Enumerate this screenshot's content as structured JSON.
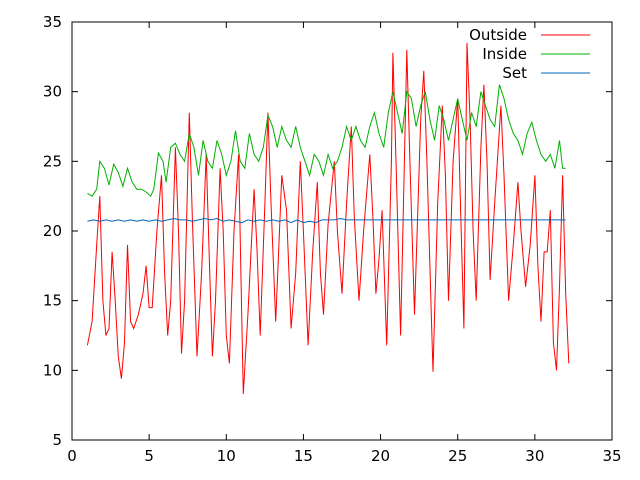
{
  "chart_data": {
    "type": "line",
    "title": "",
    "xlabel": "",
    "ylabel": "",
    "xlim": [
      0,
      35
    ],
    "ylim": [
      5,
      35
    ],
    "x_ticks": [
      0,
      5,
      10,
      15,
      20,
      25,
      30,
      35
    ],
    "y_ticks": [
      5,
      10,
      15,
      20,
      25,
      30,
      35
    ],
    "grid": false,
    "legend_position": "top-right",
    "series": [
      {
        "name": "Outside",
        "color": "#ff0000",
        "points": [
          [
            1.0,
            11.8
          ],
          [
            1.3,
            13.5
          ],
          [
            1.6,
            19.0
          ],
          [
            1.8,
            22.5
          ],
          [
            2.0,
            15.0
          ],
          [
            2.2,
            12.5
          ],
          [
            2.4,
            13.0
          ],
          [
            2.6,
            18.5
          ],
          [
            2.8,
            15.0
          ],
          [
            3.0,
            11.0
          ],
          [
            3.2,
            9.4
          ],
          [
            3.4,
            12.0
          ],
          [
            3.6,
            19.0
          ],
          [
            3.8,
            13.5
          ],
          [
            4.0,
            13.0
          ],
          [
            4.3,
            14.0
          ],
          [
            4.6,
            15.5
          ],
          [
            4.8,
            17.5
          ],
          [
            5.0,
            14.5
          ],
          [
            5.2,
            14.5
          ],
          [
            5.5,
            20.0
          ],
          [
            5.8,
            24.0
          ],
          [
            6.0,
            17.0
          ],
          [
            6.2,
            12.5
          ],
          [
            6.4,
            15.0
          ],
          [
            6.7,
            26.0
          ],
          [
            6.9,
            20.0
          ],
          [
            7.1,
            11.2
          ],
          [
            7.3,
            15.0
          ],
          [
            7.6,
            28.5
          ],
          [
            7.8,
            21.0
          ],
          [
            8.1,
            11.0
          ],
          [
            8.4,
            17.0
          ],
          [
            8.7,
            25.5
          ],
          [
            8.9,
            18.0
          ],
          [
            9.1,
            11.0
          ],
          [
            9.3,
            15.0
          ],
          [
            9.6,
            24.5
          ],
          [
            9.8,
            20.0
          ],
          [
            10.0,
            12.5
          ],
          [
            10.2,
            10.5
          ],
          [
            10.5,
            20.0
          ],
          [
            10.8,
            25.5
          ],
          [
            11.0,
            14.0
          ],
          [
            11.1,
            8.3
          ],
          [
            11.4,
            14.0
          ],
          [
            11.8,
            23.0
          ],
          [
            12.0,
            18.5
          ],
          [
            12.2,
            12.5
          ],
          [
            12.5,
            22.0
          ],
          [
            12.7,
            28.5
          ],
          [
            12.9,
            22.0
          ],
          [
            13.2,
            13.5
          ],
          [
            13.6,
            24.0
          ],
          [
            13.9,
            21.5
          ],
          [
            14.2,
            13.0
          ],
          [
            14.5,
            17.0
          ],
          [
            14.8,
            25.0
          ],
          [
            15.0,
            20.0
          ],
          [
            15.3,
            11.8
          ],
          [
            15.6,
            18.5
          ],
          [
            15.9,
            23.5
          ],
          [
            16.1,
            17.0
          ],
          [
            16.3,
            14.0
          ],
          [
            16.6,
            20.5
          ],
          [
            17.0,
            25.0
          ],
          [
            17.2,
            20.0
          ],
          [
            17.5,
            15.5
          ],
          [
            17.8,
            22.0
          ],
          [
            18.1,
            27.5
          ],
          [
            18.3,
            21.0
          ],
          [
            18.6,
            15.0
          ],
          [
            18.9,
            20.0
          ],
          [
            19.3,
            25.5
          ],
          [
            19.5,
            21.0
          ],
          [
            19.7,
            15.5
          ],
          [
            19.9,
            18.0
          ],
          [
            20.1,
            21.5
          ],
          [
            20.4,
            11.8
          ],
          [
            20.7,
            25.0
          ],
          [
            20.8,
            32.8
          ],
          [
            21.0,
            25.0
          ],
          [
            21.3,
            12.5
          ],
          [
            21.6,
            28.0
          ],
          [
            21.7,
            33.0
          ],
          [
            21.9,
            25.0
          ],
          [
            22.2,
            14.0
          ],
          [
            22.6,
            28.0
          ],
          [
            22.8,
            31.5
          ],
          [
            23.0,
            25.0
          ],
          [
            23.3,
            13.5
          ],
          [
            23.4,
            9.9
          ],
          [
            23.7,
            22.0
          ],
          [
            24.0,
            29.0
          ],
          [
            24.2,
            24.0
          ],
          [
            24.4,
            15.0
          ],
          [
            24.7,
            25.0
          ],
          [
            25.0,
            29.5
          ],
          [
            25.2,
            21.0
          ],
          [
            25.4,
            13.0
          ],
          [
            25.6,
            33.5
          ],
          [
            25.8,
            28.0
          ],
          [
            26.0,
            20.0
          ],
          [
            26.2,
            15.0
          ],
          [
            26.5,
            26.0
          ],
          [
            26.7,
            30.5
          ],
          [
            26.9,
            25.0
          ],
          [
            27.1,
            16.5
          ],
          [
            27.4,
            22.0
          ],
          [
            27.8,
            29.0
          ],
          [
            28.0,
            24.0
          ],
          [
            28.3,
            15.0
          ],
          [
            28.6,
            19.0
          ],
          [
            28.9,
            23.5
          ],
          [
            29.1,
            20.0
          ],
          [
            29.4,
            16.0
          ],
          [
            29.7,
            19.0
          ],
          [
            30.0,
            24.0
          ],
          [
            30.2,
            17.5
          ],
          [
            30.4,
            13.5
          ],
          [
            30.6,
            18.5
          ],
          [
            30.8,
            18.5
          ],
          [
            31.0,
            21.5
          ],
          [
            31.2,
            12.0
          ],
          [
            31.4,
            10.0
          ],
          [
            31.6,
            16.0
          ],
          [
            31.8,
            24.0
          ],
          [
            32.0,
            15.5
          ],
          [
            32.2,
            10.5
          ]
        ]
      },
      {
        "name": "Inside",
        "color": "#00b000",
        "points": [
          [
            1.0,
            22.7
          ],
          [
            1.3,
            22.5
          ],
          [
            1.6,
            23.0
          ],
          [
            1.8,
            25.0
          ],
          [
            2.1,
            24.5
          ],
          [
            2.4,
            23.3
          ],
          [
            2.7,
            24.8
          ],
          [
            3.0,
            24.2
          ],
          [
            3.3,
            23.2
          ],
          [
            3.6,
            24.5
          ],
          [
            3.9,
            23.5
          ],
          [
            4.2,
            23.0
          ],
          [
            4.5,
            23.0
          ],
          [
            4.8,
            22.8
          ],
          [
            5.1,
            22.5
          ],
          [
            5.3,
            23.0
          ],
          [
            5.6,
            25.6
          ],
          [
            5.9,
            25.0
          ],
          [
            6.1,
            23.5
          ],
          [
            6.4,
            26.0
          ],
          [
            6.7,
            26.3
          ],
          [
            7.0,
            25.5
          ],
          [
            7.3,
            25.0
          ],
          [
            7.6,
            27.0
          ],
          [
            7.9,
            26.0
          ],
          [
            8.2,
            24.0
          ],
          [
            8.5,
            26.5
          ],
          [
            8.8,
            25.0
          ],
          [
            9.1,
            24.5
          ],
          [
            9.4,
            26.5
          ],
          [
            9.7,
            25.5
          ],
          [
            10.0,
            24.0
          ],
          [
            10.3,
            25.0
          ],
          [
            10.6,
            27.2
          ],
          [
            10.9,
            25.0
          ],
          [
            11.2,
            24.5
          ],
          [
            11.5,
            27.0
          ],
          [
            11.8,
            25.5
          ],
          [
            12.1,
            25.0
          ],
          [
            12.4,
            26.0
          ],
          [
            12.7,
            28.3
          ],
          [
            13.0,
            27.5
          ],
          [
            13.3,
            26.0
          ],
          [
            13.6,
            27.5
          ],
          [
            13.9,
            26.5
          ],
          [
            14.2,
            26.0
          ],
          [
            14.5,
            27.5
          ],
          [
            14.8,
            26.0
          ],
          [
            15.1,
            25.0
          ],
          [
            15.4,
            24.0
          ],
          [
            15.7,
            25.5
          ],
          [
            16.0,
            25.0
          ],
          [
            16.3,
            24.0
          ],
          [
            16.6,
            25.5
          ],
          [
            16.9,
            24.5
          ],
          [
            17.2,
            25.0
          ],
          [
            17.5,
            26.0
          ],
          [
            17.8,
            27.5
          ],
          [
            18.1,
            26.5
          ],
          [
            18.4,
            27.5
          ],
          [
            18.7,
            26.5
          ],
          [
            19.0,
            26.0
          ],
          [
            19.3,
            27.5
          ],
          [
            19.6,
            28.5
          ],
          [
            19.9,
            27.0
          ],
          [
            20.2,
            26.0
          ],
          [
            20.5,
            28.5
          ],
          [
            20.8,
            30.0
          ],
          [
            21.1,
            28.5
          ],
          [
            21.4,
            27.0
          ],
          [
            21.7,
            30.0
          ],
          [
            22.0,
            29.5
          ],
          [
            22.3,
            27.5
          ],
          [
            22.6,
            29.0
          ],
          [
            22.9,
            30.0
          ],
          [
            23.2,
            28.0
          ],
          [
            23.5,
            26.5
          ],
          [
            23.8,
            29.0
          ],
          [
            24.1,
            28.0
          ],
          [
            24.4,
            26.5
          ],
          [
            24.7,
            28.0
          ],
          [
            25.0,
            29.5
          ],
          [
            25.3,
            28.0
          ],
          [
            25.6,
            26.5
          ],
          [
            25.9,
            28.5
          ],
          [
            26.2,
            27.5
          ],
          [
            26.5,
            30.0
          ],
          [
            26.8,
            29.0
          ],
          [
            27.1,
            28.0
          ],
          [
            27.4,
            27.5
          ],
          [
            27.7,
            30.5
          ],
          [
            28.0,
            29.5
          ],
          [
            28.3,
            28.0
          ],
          [
            28.6,
            27.0
          ],
          [
            28.9,
            26.5
          ],
          [
            29.2,
            25.5
          ],
          [
            29.5,
            27.0
          ],
          [
            29.8,
            27.8
          ],
          [
            30.1,
            26.5
          ],
          [
            30.4,
            25.5
          ],
          [
            30.7,
            25.0
          ],
          [
            31.0,
            25.5
          ],
          [
            31.3,
            24.5
          ],
          [
            31.6,
            26.5
          ],
          [
            31.8,
            24.5
          ],
          [
            32.0,
            24.5
          ]
        ]
      },
      {
        "name": "Set",
        "color": "#0066bb",
        "points": [
          [
            1.0,
            20.7
          ],
          [
            1.4,
            20.8
          ],
          [
            1.8,
            20.7
          ],
          [
            2.2,
            20.8
          ],
          [
            2.6,
            20.7
          ],
          [
            3.0,
            20.8
          ],
          [
            3.4,
            20.7
          ],
          [
            3.8,
            20.8
          ],
          [
            4.2,
            20.7
          ],
          [
            4.6,
            20.8
          ],
          [
            5.0,
            20.7
          ],
          [
            5.4,
            20.8
          ],
          [
            5.8,
            20.7
          ],
          [
            6.2,
            20.8
          ],
          [
            6.6,
            20.9
          ],
          [
            7.0,
            20.8
          ],
          [
            7.4,
            20.8
          ],
          [
            7.8,
            20.7
          ],
          [
            8.2,
            20.8
          ],
          [
            8.6,
            20.9
          ],
          [
            9.0,
            20.8
          ],
          [
            9.4,
            20.9
          ],
          [
            9.8,
            20.7
          ],
          [
            10.2,
            20.8
          ],
          [
            10.6,
            20.7
          ],
          [
            11.0,
            20.6
          ],
          [
            11.4,
            20.8
          ],
          [
            11.8,
            20.7
          ],
          [
            12.2,
            20.8
          ],
          [
            12.6,
            20.7
          ],
          [
            13.0,
            20.8
          ],
          [
            13.4,
            20.7
          ],
          [
            13.8,
            20.8
          ],
          [
            14.2,
            20.6
          ],
          [
            14.6,
            20.8
          ],
          [
            15.0,
            20.6
          ],
          [
            15.4,
            20.7
          ],
          [
            15.8,
            20.6
          ],
          [
            16.2,
            20.8
          ],
          [
            16.6,
            20.8
          ],
          [
            17.0,
            20.8
          ],
          [
            17.4,
            20.9
          ],
          [
            17.8,
            20.8
          ],
          [
            18.2,
            20.8
          ],
          [
            18.6,
            20.8
          ],
          [
            19.0,
            20.8
          ],
          [
            19.5,
            20.8
          ],
          [
            20.0,
            20.8
          ],
          [
            21.0,
            20.8
          ],
          [
            22.0,
            20.8
          ],
          [
            23.0,
            20.8
          ],
          [
            24.0,
            20.8
          ],
          [
            25.0,
            20.8
          ],
          [
            26.0,
            20.8
          ],
          [
            27.0,
            20.8
          ],
          [
            28.0,
            20.8
          ],
          [
            29.0,
            20.8
          ],
          [
            30.0,
            20.8
          ],
          [
            31.0,
            20.8
          ],
          [
            32.0,
            20.8
          ]
        ]
      }
    ]
  }
}
